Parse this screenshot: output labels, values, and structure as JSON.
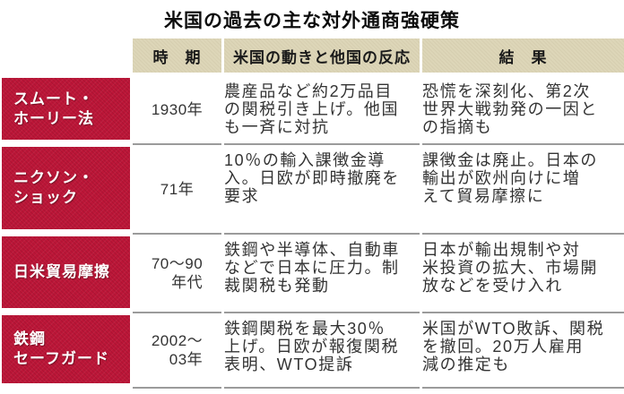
{
  "title": "米国の過去の主な対外通商強硬策",
  "colors": {
    "accent_red": "#bc1638",
    "header_beige": "#ddd6b8",
    "divider_gray": "#9b9b9b",
    "text_dark": "#333333"
  },
  "header": {
    "period": "時　期",
    "action": "米国の動きと他国の反応",
    "result": "結　果"
  },
  "rows": [
    {
      "label": [
        "スムート・",
        "ホーリー法"
      ],
      "period": [
        "1930年"
      ],
      "action": [
        "農産品など約2万品目",
        "の関税引き上げ。他国",
        "も一斉に対抗"
      ],
      "result": [
        "恐慌を深刻化、第2次",
        "世界大戦勃発の一因と",
        "の指摘も"
      ]
    },
    {
      "label": [
        "ニクソン・",
        "ショック"
      ],
      "period": [
        "71年"
      ],
      "action": [
        "10％の輸入課徴金導",
        "入。日欧が即時撤廃を",
        "要求"
      ],
      "result": [
        "課徴金は廃止。日本の",
        "輸出が欧州向けに増",
        "えて貿易摩擦に"
      ]
    },
    {
      "label": [
        "日米貿易摩擦"
      ],
      "period": [
        "70～90",
        "年代"
      ],
      "action": [
        "鉄鋼や半導体、自動車",
        "などで日本に圧力。制",
        "裁関税も発動"
      ],
      "result": [
        "日本が輸出規制や対",
        "米投資の拡大、市場開",
        "放などを受け入れ"
      ]
    },
    {
      "label": [
        "鉄鋼",
        "セーフガード"
      ],
      "period": [
        "2002～",
        "03年"
      ],
      "action": [
        "鉄鋼関税を最大30％",
        "上げ。日欧が報復関税",
        "表明、WTO提訴"
      ],
      "result": [
        "米国がWTO敗訴、関税",
        "を撤回。20万人雇用",
        "減の推定も"
      ]
    }
  ]
}
